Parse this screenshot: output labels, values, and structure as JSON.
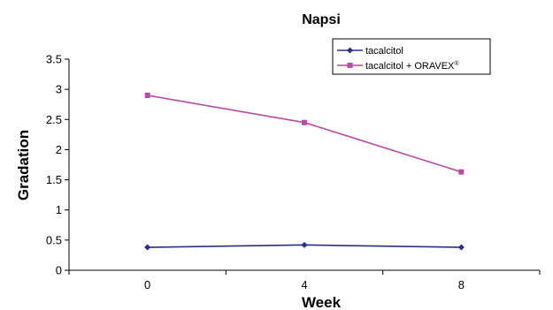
{
  "chart_data": {
    "type": "line",
    "title": "Napsi",
    "xlabel": "Week",
    "ylabel": "Gradation",
    "categories": [
      "0",
      "4",
      "8"
    ],
    "ylim": [
      0,
      3.5
    ],
    "yticks": [
      "0",
      "0.5",
      "1",
      "1.5",
      "2",
      "2.5",
      "3",
      "3.5"
    ],
    "grid": false,
    "legend_position": "top-right",
    "series": [
      {
        "name": "tacalcitol",
        "name_sup": "",
        "marker": "diamond",
        "color": "#2b2f8c",
        "values": [
          0.38,
          0.42,
          0.38
        ]
      },
      {
        "name": "tacalcitol + ORAVEX",
        "name_sup": "®",
        "marker": "square",
        "color": "#b94aa6",
        "values": [
          2.9,
          2.45,
          1.63
        ]
      }
    ]
  }
}
